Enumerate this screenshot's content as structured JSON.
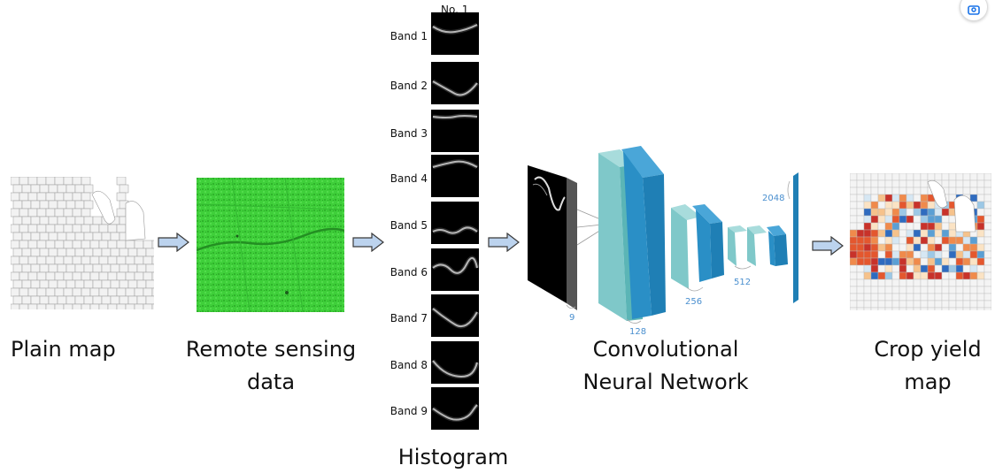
{
  "captions": {
    "plain_map": "Plain map",
    "remote_line1": "Remote sensing",
    "remote_line2": "data",
    "histogram": "Histogram",
    "cnn_line1": "Convolutional",
    "cnn_line2": "Neural Network",
    "yield_line1": "Crop yield",
    "yield_line2": "map"
  },
  "histogram": {
    "header": "No. 1",
    "bands": [
      "Band 1",
      "Band 2",
      "Band 3",
      "Band 4",
      "Band 5",
      "Band 6",
      "Band 7",
      "Band 8",
      "Band 9"
    ]
  },
  "cnn_dims": {
    "d9": "9",
    "d128": "128",
    "d256": "256",
    "d512": "512",
    "d2048": "2048"
  },
  "colors": {
    "arrow_fill": "#bcd3ee",
    "arrow_stroke": "#3a3a3a",
    "layer_light": "#7fc8c9",
    "layer_dark": "#2a8fc6",
    "vegetation": "#3fcf3a"
  },
  "icons": {
    "lens": "lens-icon"
  }
}
